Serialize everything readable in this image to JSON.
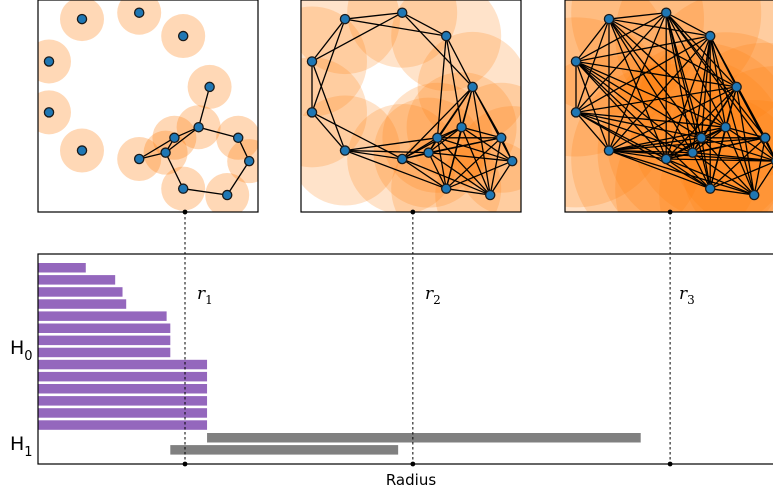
{
  "x_axis_label": "Radius",
  "homology_labels": [
    {
      "main": "H",
      "sub": "0"
    },
    {
      "main": "H",
      "sub": "1"
    }
  ],
  "radius_markers": [
    {
      "main": "r",
      "sub": "1"
    },
    {
      "main": "r",
      "sub": "2"
    },
    {
      "main": "r",
      "sub": "3"
    }
  ],
  "colors": {
    "disk": "#ff7f0e",
    "node_fill": "#1f77b4",
    "h0_bar": "#9467bd",
    "h1_bar": "#808080"
  },
  "chart_data": {
    "type": "bar",
    "xlabel": "Radius",
    "xlim": [
      0,
      100
    ],
    "markers": [
      20,
      51,
      86
    ],
    "series": [
      {
        "name": "H0",
        "intervals": [
          [
            0,
            6.5
          ],
          [
            0,
            10.5
          ],
          [
            0,
            11.5
          ],
          [
            0,
            12
          ],
          [
            0,
            17.5
          ],
          [
            0,
            18
          ],
          [
            0,
            18
          ],
          [
            0,
            18
          ],
          [
            0,
            23
          ],
          [
            0,
            23
          ],
          [
            0,
            23
          ],
          [
            0,
            23
          ],
          [
            0,
            23
          ],
          [
            0,
            23
          ]
        ]
      },
      {
        "name": "H1",
        "intervals": [
          [
            23,
            82
          ],
          [
            18,
            49
          ]
        ]
      }
    ],
    "point_cloud": [
      [
        0.2,
        0.09
      ],
      [
        0.46,
        0.06
      ],
      [
        0.66,
        0.17
      ],
      [
        0.05,
        0.29
      ],
      [
        0.78,
        0.41
      ],
      [
        0.05,
        0.53
      ],
      [
        0.73,
        0.6
      ],
      [
        0.62,
        0.65
      ],
      [
        0.91,
        0.65
      ],
      [
        0.2,
        0.71
      ],
      [
        0.58,
        0.72
      ],
      [
        0.46,
        0.75
      ],
      [
        0.96,
        0.76
      ],
      [
        0.66,
        0.89
      ],
      [
        0.86,
        0.92
      ]
    ]
  }
}
